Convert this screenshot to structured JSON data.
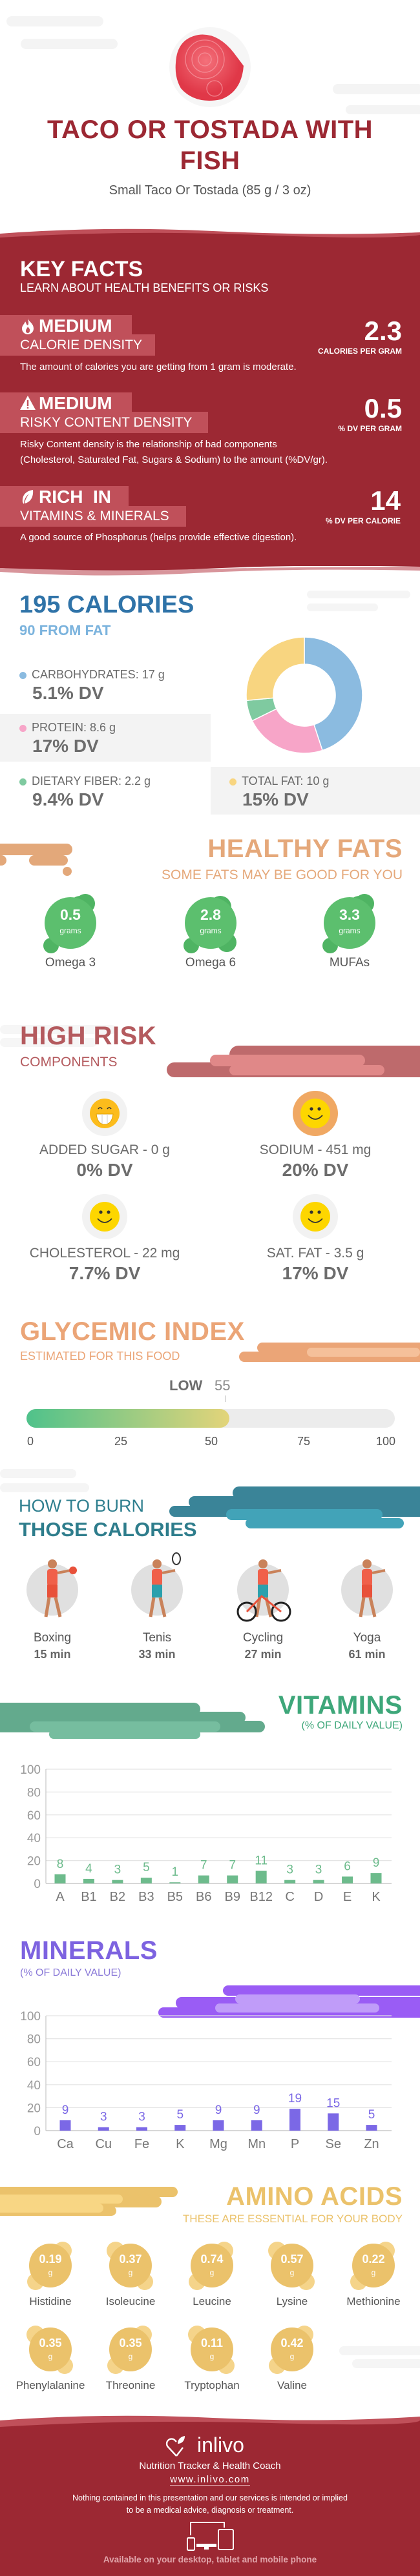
{
  "header": {
    "title_line1": "TACO OR TOSTADA WITH",
    "title_line2": "FISH",
    "serving": "Small Taco Or Tostada (85 g / 3 oz)",
    "image": "raw-tuna-photo"
  },
  "key_facts": {
    "title": "KEY FACTS",
    "subtitle": "LEARN ABOUT HEALTH BENEFITS OR RISKS",
    "items": [
      {
        "icon": "flame-icon",
        "level": "MEDIUM",
        "label": "CALORIE DENSITY",
        "value": "2.3",
        "unit": "CALORIES PER GRAM",
        "desc": "The amount of calories you are getting from 1 gram is moderate."
      },
      {
        "icon": "warning-icon",
        "level": "MEDIUM",
        "label": "RISKY CONTENT DENSITY",
        "value": "0.5",
        "unit": "% DV PER GRAM",
        "desc": "Risky Content density is the relationship of bad components",
        "desc2": "(Cholesterol, Saturated Fat, Sugars & Sodium) to the amount (%DV/gr)."
      },
      {
        "icon": "leaf-icon",
        "level": "RICH  IN",
        "label": "VITAMINS & MINERALS",
        "value": "14",
        "unit": "% DV PER CALORIE",
        "desc": "A good source of Phosphorus (helps provide effective digestion)."
      }
    ]
  },
  "calories": {
    "title": "195 CALORIES",
    "from_fat": "90 FROM FAT",
    "macros": [
      {
        "label": "CARBOHYDRATES: 17 g",
        "dv": "5.1% DV",
        "color": "#8bbbe0"
      },
      {
        "label": "PROTEIN: 8.6 g",
        "dv": "17% DV",
        "color": "#f7a5c8"
      },
      {
        "label": "DIETARY FIBER: 2.2 g",
        "dv": "9.4% DV",
        "color": "#7fcaa0"
      },
      {
        "label": "TOTAL FAT: 10 g",
        "dv": "15% DV",
        "color": "#f8d580"
      }
    ]
  },
  "chart_data": [
    {
      "type": "pie",
      "variant": "donut",
      "categories": [
        "Carbohydrates",
        "Protein",
        "Dietary Fiber",
        "Total Fat"
      ],
      "values": [
        17,
        8.6,
        2.2,
        10
      ],
      "unit": "g",
      "colors": [
        "#8bbbe0",
        "#f7a5c8",
        "#7fcaa0",
        "#f8d580"
      ]
    },
    {
      "type": "bar",
      "title": "VITAMINS",
      "subtitle": "(% OF DAILY VALUE)",
      "categories": [
        "A",
        "B1",
        "B2",
        "B3",
        "B5",
        "B6",
        "B9",
        "B12",
        "C",
        "D",
        "E",
        "K"
      ],
      "values": [
        8,
        4,
        3,
        5,
        1,
        7,
        7,
        11,
        3,
        3,
        6,
        9
      ],
      "ylim": [
        0,
        100
      ],
      "yticks": [
        0,
        20,
        40,
        60,
        80,
        100
      ],
      "grid": true,
      "color": "#6dbb8c"
    },
    {
      "type": "bar",
      "title": "MINERALS",
      "subtitle": "(% OF DAILY VALUE)",
      "categories": [
        "Ca",
        "Cu",
        "Fe",
        "K",
        "Mg",
        "Mn",
        "P",
        "Se",
        "Zn"
      ],
      "values": [
        9,
        3,
        3,
        5,
        9,
        9,
        19,
        15,
        5
      ],
      "ylim": [
        0,
        100
      ],
      "yticks": [
        0,
        20,
        40,
        60,
        80,
        100
      ],
      "grid": true,
      "color": "#7b68e6"
    }
  ],
  "healthy_fats": {
    "title": "HEALTHY FATS",
    "subtitle": "SOME FATS MAY BE GOOD FOR YOU",
    "unit": "grams",
    "items": [
      {
        "value": "0.5",
        "name": "Omega 3"
      },
      {
        "value": "2.8",
        "name": "Omega 6"
      },
      {
        "value": "3.3",
        "name": "MUFAs"
      }
    ]
  },
  "high_risk": {
    "title": "HIGH RISK",
    "subtitle": "COMPONENTS",
    "items": [
      {
        "label": "ADDED SUGAR - 0 g",
        "dv": "0% DV",
        "icon": "grin-face-icon"
      },
      {
        "label": "SODIUM - 451 mg",
        "dv": "20% DV",
        "icon": "smile-face-icon"
      },
      {
        "label": "CHOLESTEROL - 22 mg",
        "dv": "7.7% DV",
        "icon": "smile-face-icon"
      },
      {
        "label": "SAT. FAT - 3.5 g",
        "dv": "17% DV",
        "icon": "smile-face-icon"
      }
    ]
  },
  "glycemic": {
    "title": "GLYCEMIC INDEX",
    "subtitle": "ESTIMATED FOR THIS FOOD",
    "level": "LOW",
    "value": 55,
    "value_label": "55",
    "ticks": [
      "0",
      "25",
      "50",
      "75",
      "100"
    ]
  },
  "burn": {
    "title1": "HOW TO BURN",
    "title2": "THOSE CALORIES",
    "items": [
      {
        "name": "Boxing",
        "time": "15 min"
      },
      {
        "name": "Tenis",
        "time": "33 min"
      },
      {
        "name": "Cycling",
        "time": "27 min"
      },
      {
        "name": "Yoga",
        "time": "61 min"
      }
    ]
  },
  "amino": {
    "title": "AMINO ACIDS",
    "subtitle": "THESE ARE ESSENTIAL FOR YOUR BODY",
    "unit": "g",
    "items": [
      {
        "value": "0.19",
        "name": "Histidine"
      },
      {
        "value": "0.37",
        "name": "Isoleucine"
      },
      {
        "value": "0.74",
        "name": "Leucine"
      },
      {
        "value": "0.57",
        "name": "Lysine"
      },
      {
        "value": "0.22",
        "name": "Methionine"
      },
      {
        "value": "0.35",
        "name": "Phenylalanine"
      },
      {
        "value": "0.35",
        "name": "Threonine"
      },
      {
        "value": "0.11",
        "name": "Tryptophan"
      },
      {
        "value": "0.42",
        "name": "Valine"
      }
    ]
  },
  "footer": {
    "brand": "inlivo",
    "tagline": "Nutrition Tracker & Health Coach",
    "url": "www.inlivo.com",
    "disclaimer1": "Nothing contained in this presentation and our services is intended or implied",
    "disclaimer2": "to be a medical advice, diagnosis or treatment.",
    "available": "Available on your desktop, tablet and mobile phone"
  }
}
